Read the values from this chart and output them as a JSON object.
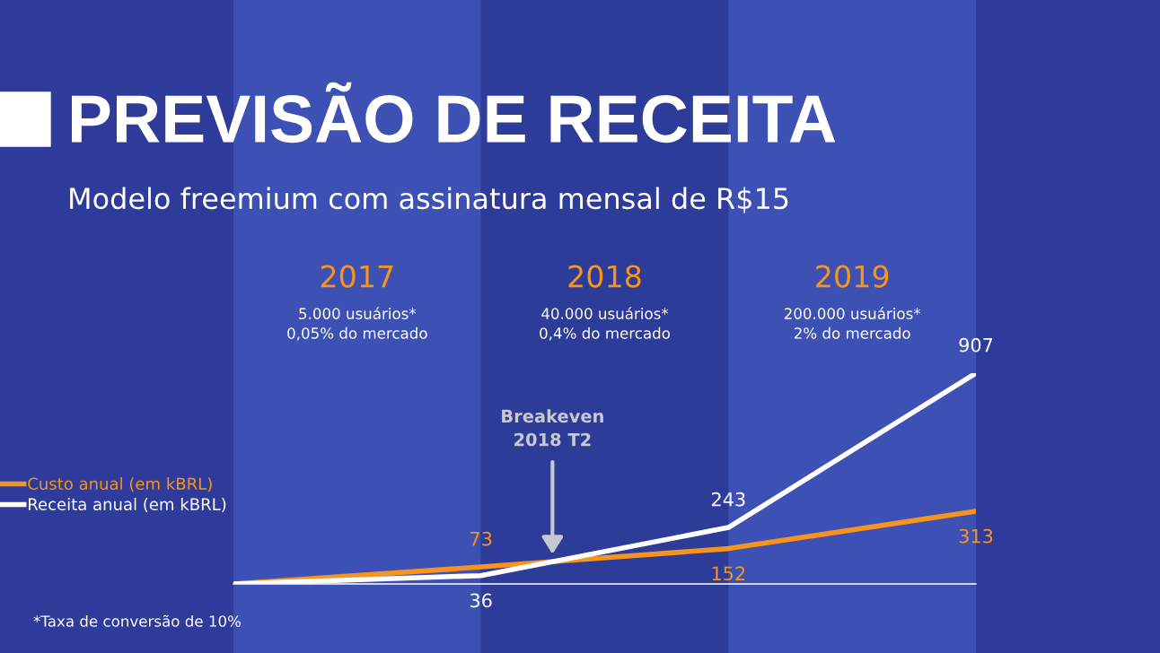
{
  "chart_data": {
    "type": "line",
    "title": "PREVISÃO DE RECEITA",
    "subtitle": "Modelo freemium com assinatura mensal de R$15",
    "categories": [
      null,
      null,
      null,
      null
    ],
    "legend": "left",
    "series": [
      {
        "name": "Custo anual (em kBRL)",
        "color": "#f7941d",
        "values": [
          0,
          73,
          152,
          313
        ],
        "value_labels": [
          null,
          "73",
          "152",
          "313"
        ]
      },
      {
        "name": "Receita anual (em kBRL)",
        "color": "#ffffff",
        "values": [
          0,
          36,
          243,
          907
        ],
        "value_labels": [
          null,
          "36",
          "243",
          "907"
        ]
      }
    ],
    "annotations": [
      "2017",
      "5.000 usuários*\n0,05% do mercado",
      "2018",
      "40.000 usuários*\n0,4% do mercado",
      "2019",
      "200.000 usuários*\n2% do mercado",
      "Breakeven\n2018 T2",
      "*Taxa de conversão de 10%"
    ]
  }
}
